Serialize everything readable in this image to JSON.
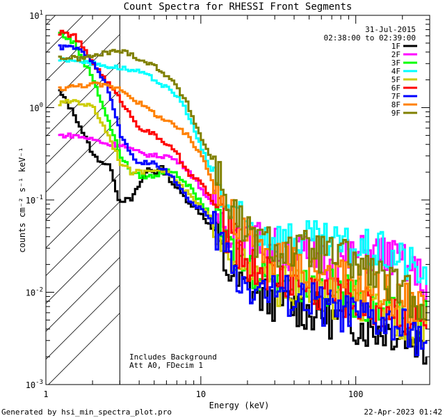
{
  "chart_data": {
    "type": "line",
    "title": "Count Spectra for RHESSI Front Segments",
    "xlabel": "Energy (keV)",
    "ylabel": "counts cm⁻² s⁻¹ keV⁻¹",
    "x_scale": "log",
    "y_scale": "log",
    "xlim": [
      1,
      300
    ],
    "ylim": [
      0.001,
      10
    ],
    "x_tick_labels": [
      "1",
      "10",
      "100"
    ],
    "y_tick_labels": [
      "10⁰¹",
      "10⁰",
      "10⁻¹",
      "10⁻²",
      "10⁻³"
    ],
    "y_tick_base": "10",
    "y_tick_exps": [
      "1",
      "0",
      "-1",
      "-2",
      "-3"
    ],
    "date": "31-Jul-2015",
    "time_range": "02:38:00 to 02:39:00",
    "annotations": [
      "Includes Background",
      "Att A0, FDecim 1"
    ],
    "shaded_region": {
      "x_min": 1,
      "x_max": 3,
      "label": "hatched low-energy region"
    },
    "series": [
      {
        "name": "1F",
        "color": "#000000",
        "points": [
          [
            1.2,
            1.5
          ],
          [
            1.5,
            0.85
          ],
          [
            2,
            0.3
          ],
          [
            2.6,
            0.22
          ],
          [
            2.9,
            0.1
          ],
          [
            3.5,
            0.1
          ],
          [
            4.5,
            0.22
          ],
          [
            5,
            0.2
          ],
          [
            5.5,
            0.22
          ],
          [
            6.5,
            0.15
          ],
          [
            8,
            0.1
          ],
          [
            10,
            0.07
          ],
          [
            12,
            0.045
          ],
          [
            14,
            0.02
          ],
          [
            17,
            0.012
          ],
          [
            20,
            0.011
          ],
          [
            25,
            0.009
          ],
          [
            30,
            0.008
          ],
          [
            40,
            0.007
          ],
          [
            50,
            0.006
          ],
          [
            60,
            0.006
          ],
          [
            70,
            0.005
          ],
          [
            80,
            0.005
          ],
          [
            100,
            0.0045
          ],
          [
            120,
            0.004
          ],
          [
            150,
            0.004
          ],
          [
            200,
            0.0035
          ],
          [
            250,
            0.003
          ],
          [
            285,
            0.002
          ]
        ]
      },
      {
        "name": "2F",
        "color": "#ff00ff",
        "points": [
          [
            1.2,
            0.5
          ],
          [
            1.5,
            0.5
          ],
          [
            2,
            0.45
          ],
          [
            2.5,
            0.4
          ],
          [
            3,
            0.4
          ],
          [
            3.5,
            0.35
          ],
          [
            4,
            0.32
          ],
          [
            5,
            0.3
          ],
          [
            6,
            0.3
          ],
          [
            7,
            0.26
          ],
          [
            8,
            0.22
          ],
          [
            10,
            0.13
          ],
          [
            12,
            0.08
          ],
          [
            15,
            0.05
          ],
          [
            20,
            0.04
          ],
          [
            25,
            0.035
          ],
          [
            30,
            0.03
          ],
          [
            40,
            0.027
          ],
          [
            50,
            0.025
          ],
          [
            60,
            0.023
          ],
          [
            80,
            0.022
          ],
          [
            100,
            0.025
          ],
          [
            130,
            0.027
          ],
          [
            160,
            0.025
          ],
          [
            200,
            0.02
          ],
          [
            250,
            0.015
          ],
          [
            285,
            0.012
          ]
        ]
      },
      {
        "name": "3F",
        "color": "#00ff00",
        "points": [
          [
            1.2,
            6.5
          ],
          [
            1.5,
            5
          ],
          [
            2,
            2
          ],
          [
            2.5,
            0.7
          ],
          [
            3,
            0.3
          ],
          [
            3.5,
            0.2
          ],
          [
            4,
            0.18
          ],
          [
            5,
            0.18
          ],
          [
            6,
            0.22
          ],
          [
            7,
            0.18
          ],
          [
            8,
            0.15
          ],
          [
            10,
            0.09
          ],
          [
            12,
            0.06
          ],
          [
            15,
            0.03
          ],
          [
            20,
            0.018
          ],
          [
            30,
            0.016
          ],
          [
            50,
            0.012
          ],
          [
            80,
            0.01
          ],
          [
            120,
            0.008
          ],
          [
            200,
            0.006
          ],
          [
            285,
            0.005
          ]
        ]
      },
      {
        "name": "4F",
        "color": "#00ffff",
        "points": [
          [
            1.2,
            3.3
          ],
          [
            1.6,
            3.3
          ],
          [
            2,
            3
          ],
          [
            2.5,
            2.8
          ],
          [
            3,
            2.7
          ],
          [
            4,
            2.4
          ],
          [
            5,
            2
          ],
          [
            6,
            1.6
          ],
          [
            7,
            1.3
          ],
          [
            8,
            0.9
          ],
          [
            9,
            0.55
          ],
          [
            10,
            0.35
          ],
          [
            12,
            0.18
          ],
          [
            14,
            0.09
          ],
          [
            17,
            0.06
          ],
          [
            20,
            0.05
          ],
          [
            25,
            0.045
          ],
          [
            30,
            0.04
          ],
          [
            40,
            0.038
          ],
          [
            50,
            0.036
          ],
          [
            70,
            0.032
          ],
          [
            100,
            0.03
          ],
          [
            150,
            0.027
          ],
          [
            200,
            0.022
          ],
          [
            250,
            0.017
          ],
          [
            285,
            0.012
          ]
        ]
      },
      {
        "name": "5F",
        "color": "#cccc00",
        "points": [
          [
            1.2,
            1.1
          ],
          [
            1.5,
            1.2
          ],
          [
            2,
            1.0
          ],
          [
            2.5,
            0.5
          ],
          [
            3,
            0.25
          ],
          [
            3.5,
            0.2
          ],
          [
            4,
            0.2
          ],
          [
            5,
            0.22
          ],
          [
            6,
            0.2
          ],
          [
            7,
            0.15
          ],
          [
            8,
            0.12
          ],
          [
            10,
            0.08
          ],
          [
            12,
            0.06
          ],
          [
            15,
            0.03
          ],
          [
            20,
            0.015
          ],
          [
            30,
            0.012
          ],
          [
            50,
            0.01
          ],
          [
            80,
            0.008
          ],
          [
            120,
            0.007
          ],
          [
            200,
            0.005
          ],
          [
            285,
            0.004
          ]
        ]
      },
      {
        "name": "6F",
        "color": "#ff0000",
        "points": [
          [
            1.2,
            6.5
          ],
          [
            1.5,
            6
          ],
          [
            2,
            3
          ],
          [
            2.5,
            1.8
          ],
          [
            3,
            1.2
          ],
          [
            3.5,
            0.8
          ],
          [
            4,
            0.6
          ],
          [
            5,
            0.5
          ],
          [
            6,
            0.4
          ],
          [
            7,
            0.3
          ],
          [
            8,
            0.2
          ],
          [
            10,
            0.15
          ],
          [
            12,
            0.09
          ],
          [
            14,
            0.05
          ],
          [
            17,
            0.03
          ],
          [
            20,
            0.02
          ],
          [
            30,
            0.015
          ],
          [
            50,
            0.011
          ],
          [
            80,
            0.009
          ],
          [
            120,
            0.007
          ],
          [
            200,
            0.006
          ],
          [
            285,
            0.004
          ]
        ]
      },
      {
        "name": "7F",
        "color": "#0000ff",
        "points": [
          [
            1.2,
            4.5
          ],
          [
            1.5,
            4.5
          ],
          [
            2,
            3.2
          ],
          [
            2.5,
            1.5
          ],
          [
            3,
            0.5
          ],
          [
            3.5,
            0.3
          ],
          [
            4,
            0.25
          ],
          [
            5,
            0.25
          ],
          [
            6,
            0.2
          ],
          [
            7,
            0.15
          ],
          [
            8,
            0.1
          ],
          [
            10,
            0.08
          ],
          [
            12,
            0.05
          ],
          [
            14,
            0.03
          ],
          [
            17,
            0.015
          ],
          [
            20,
            0.012
          ],
          [
            30,
            0.01
          ],
          [
            50,
            0.008
          ],
          [
            80,
            0.006
          ],
          [
            120,
            0.005
          ],
          [
            200,
            0.004
          ],
          [
            285,
            0.003
          ]
        ]
      },
      {
        "name": "8F",
        "color": "#ff8000",
        "points": [
          [
            1.2,
            1.6
          ],
          [
            1.5,
            1.7
          ],
          [
            2,
            1.8
          ],
          [
            2.5,
            1.7
          ],
          [
            3,
            1.6
          ],
          [
            3.5,
            1.3
          ],
          [
            4,
            1.1
          ],
          [
            5,
            0.85
          ],
          [
            6,
            0.7
          ],
          [
            7,
            0.6
          ],
          [
            8,
            0.5
          ],
          [
            10,
            0.3
          ],
          [
            12,
            0.15
          ],
          [
            14,
            0.09
          ],
          [
            17,
            0.05
          ],
          [
            20,
            0.035
          ],
          [
            30,
            0.025
          ],
          [
            50,
            0.018
          ],
          [
            80,
            0.014
          ],
          [
            120,
            0.012
          ],
          [
            200,
            0.008
          ],
          [
            285,
            0.006
          ]
        ]
      },
      {
        "name": "9F",
        "color": "#808000",
        "points": [
          [
            1.2,
            3.5
          ],
          [
            1.6,
            3.4
          ],
          [
            2,
            3.6
          ],
          [
            2.5,
            4
          ],
          [
            3,
            4.1
          ],
          [
            3.5,
            3.8
          ],
          [
            4,
            3.3
          ],
          [
            5,
            2.8
          ],
          [
            6,
            2.2
          ],
          [
            7,
            1.6
          ],
          [
            8,
            1.1
          ],
          [
            9,
            0.7
          ],
          [
            10,
            0.45
          ],
          [
            12,
            0.25
          ],
          [
            14,
            0.12
          ],
          [
            17,
            0.06
          ],
          [
            20,
            0.04
          ],
          [
            25,
            0.035
          ],
          [
            30,
            0.03
          ],
          [
            40,
            0.028
          ],
          [
            50,
            0.028
          ],
          [
            60,
            0.026
          ],
          [
            80,
            0.024
          ],
          [
            100,
            0.02
          ],
          [
            130,
            0.016
          ],
          [
            160,
            0.012
          ],
          [
            200,
            0.01
          ],
          [
            250,
            0.008
          ],
          [
            285,
            0.007
          ]
        ]
      }
    ]
  },
  "footer": {
    "left": "Generated by hsi_min_spectra_plot.pro",
    "right": "22-Apr-2023 01:42"
  }
}
